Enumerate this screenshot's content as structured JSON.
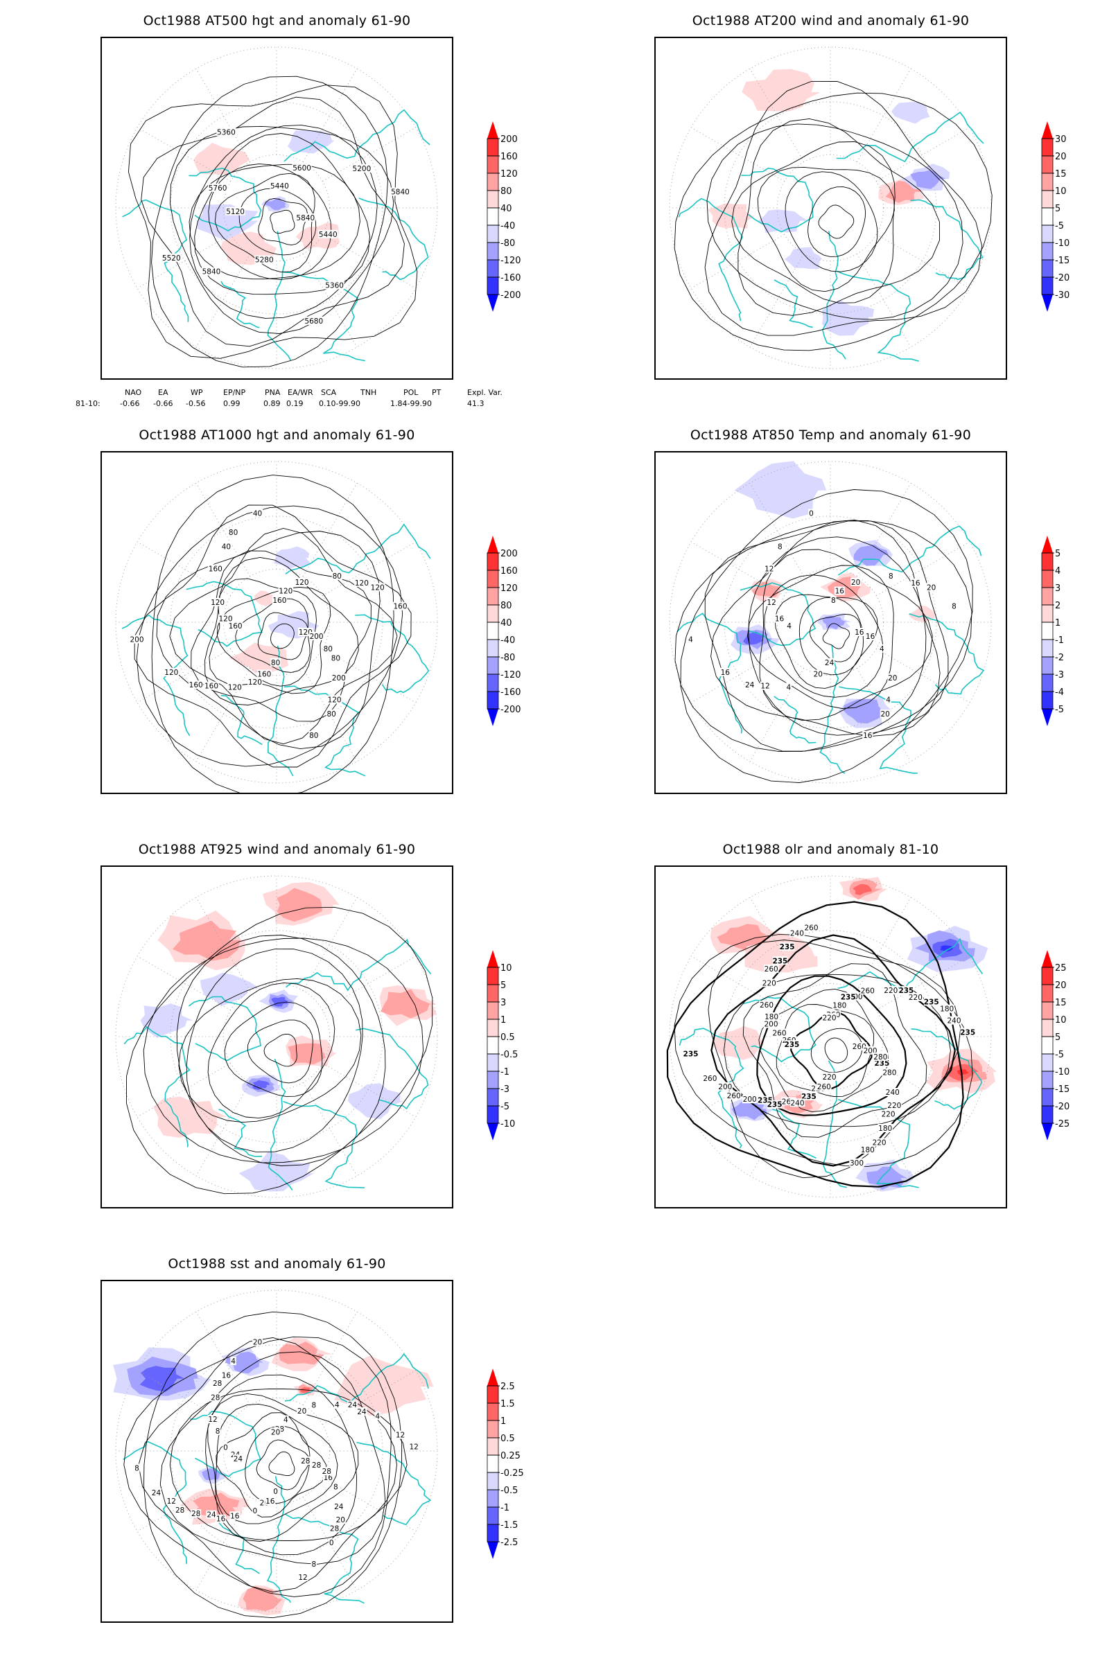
{
  "chart_data": [
    {
      "type": "heatmap",
      "id": "p500",
      "title": "Oct1988 AT500 hgt and anomaly 61-90",
      "projection": "north polar stereographic",
      "contour_labels": [
        "5840",
        "5840",
        "5440",
        "5360",
        "5120",
        "5200",
        "5280",
        "5360",
        "5440",
        "5520",
        "5600",
        "5680",
        "5760",
        "5840"
      ],
      "colorbar": {
        "levels": [
          "200",
          "160",
          "120",
          "80",
          "40",
          "-40",
          "-80",
          "-120",
          "-160",
          "-200"
        ],
        "colors": [
          "#ff0000",
          "#ff3333",
          "#ff6666",
          "#ffa3a3",
          "#ffd9d9",
          "#ffffff",
          "#d9d9ff",
          "#a3a3ff",
          "#6666ff",
          "#3333ff",
          "#0000ff"
        ]
      },
      "anomaly_pattern": [
        {
          "sign": "neg",
          "strength": 2,
          "cx": 0.0,
          "cy": -0.02,
          "r": 0.06
        },
        {
          "sign": "neg",
          "strength": 1,
          "cx": -0.32,
          "cy": 0.08,
          "r": 0.14
        },
        {
          "sign": "neg",
          "strength": 1,
          "cx": 0.2,
          "cy": -0.42,
          "r": 0.1
        },
        {
          "sign": "pos",
          "strength": 1,
          "cx": -0.36,
          "cy": -0.3,
          "r": 0.12
        },
        {
          "sign": "pos",
          "strength": 1,
          "cx": -0.2,
          "cy": 0.25,
          "r": 0.12
        },
        {
          "sign": "pos",
          "strength": 1,
          "cx": 0.28,
          "cy": 0.18,
          "r": 0.1
        }
      ]
    },
    {
      "type": "heatmap",
      "id": "p200",
      "title": "Oct1988 AT200 wind and anomaly 61-90",
      "projection": "north polar stereographic",
      "contour_labels": [],
      "colorbar": {
        "levels": [
          "30",
          "20",
          "15",
          "10",
          "5",
          "-5",
          "-10",
          "-15",
          "-20",
          "-30"
        ],
        "colors": [
          "#ff0000",
          "#ff3333",
          "#ff6666",
          "#ffa3a3",
          "#ffd9d9",
          "#ffffff",
          "#d9d9ff",
          "#a3a3ff",
          "#6666ff",
          "#3333ff",
          "#0000ff"
        ]
      },
      "anomaly_pattern": [
        {
          "sign": "pos",
          "strength": 1,
          "cx": -0.3,
          "cy": -0.72,
          "r": 0.16
        },
        {
          "sign": "pos",
          "strength": 2,
          "cx": 0.45,
          "cy": -0.1,
          "r": 0.1
        },
        {
          "sign": "pos",
          "strength": 1,
          "cx": -0.62,
          "cy": 0.05,
          "r": 0.1
        },
        {
          "sign": "neg",
          "strength": 2,
          "cx": 0.6,
          "cy": -0.18,
          "r": 0.1
        },
        {
          "sign": "neg",
          "strength": 1,
          "cx": -0.3,
          "cy": 0.08,
          "r": 0.1
        },
        {
          "sign": "neg",
          "strength": 1,
          "cx": -0.15,
          "cy": 0.32,
          "r": 0.08
        },
        {
          "sign": "neg",
          "strength": 1,
          "cx": 0.1,
          "cy": 0.68,
          "r": 0.12
        },
        {
          "sign": "neg",
          "strength": 1,
          "cx": 0.5,
          "cy": -0.6,
          "r": 0.08
        }
      ]
    },
    {
      "type": "heatmap",
      "id": "p1000",
      "title": "Oct1988 AT1000 hgt and anomaly 61-90",
      "projection": "north polar stereographic",
      "contour_labels": [
        "120",
        "160",
        "160",
        "120",
        "160",
        "120",
        "160",
        "40",
        "80",
        "120",
        "120",
        "80",
        "120",
        "160",
        "120",
        "40",
        "200",
        "200",
        "80",
        "80",
        "160",
        "200",
        "160",
        "120",
        "80",
        "120",
        "120",
        "120",
        "80",
        "80"
      ],
      "colorbar": {
        "levels": [
          "200",
          "160",
          "120",
          "80",
          "40",
          "-40",
          "-80",
          "-120",
          "-160",
          "-200"
        ],
        "colors": [
          "#ff0000",
          "#ff3333",
          "#ff6666",
          "#ffa3a3",
          "#ffd9d9",
          "#ffffff",
          "#d9d9ff",
          "#a3a3ff",
          "#6666ff",
          "#3333ff",
          "#0000ff"
        ]
      },
      "anomaly_pattern": [
        {
          "sign": "neg",
          "strength": 1,
          "cx": 0.1,
          "cy": 0.02,
          "r": 0.1
        },
        {
          "sign": "neg",
          "strength": 1,
          "cx": 0.1,
          "cy": -0.4,
          "r": 0.08
        },
        {
          "sign": "pos",
          "strength": 1,
          "cx": -0.1,
          "cy": 0.22,
          "r": 0.12
        },
        {
          "sign": "pos",
          "strength": 1,
          "cx": -0.08,
          "cy": -0.15,
          "r": 0.05
        }
      ]
    },
    {
      "type": "heatmap",
      "id": "p850",
      "title": "Oct1988 AT850 Temp and anomaly 61-90",
      "projection": "north polar stereographic",
      "contour_labels": [
        "16",
        "12",
        "8",
        "4",
        "4",
        "16",
        "20",
        "8",
        "4",
        "16",
        "20",
        "16",
        "12",
        "8",
        "4",
        "0",
        "20",
        "4",
        "8",
        "24",
        "12",
        "16",
        "24",
        "16",
        "20",
        "16",
        "20"
      ],
      "colorbar": {
        "levels": [
          "5",
          "4",
          "3",
          "2",
          "1",
          "-1",
          "-2",
          "-3",
          "-4",
          "-5"
        ],
        "colors": [
          "#ff0000",
          "#ff3333",
          "#ff6666",
          "#ffa3a3",
          "#ffd9d9",
          "#ffffff",
          "#d9d9ff",
          "#a3a3ff",
          "#6666ff",
          "#3333ff",
          "#0000ff"
        ]
      },
      "anomaly_pattern": [
        {
          "sign": "neg",
          "strength": 1,
          "cx": -0.3,
          "cy": -0.82,
          "r": 0.2
        },
        {
          "sign": "neg",
          "strength": 3,
          "cx": -0.48,
          "cy": 0.1,
          "r": 0.1
        },
        {
          "sign": "neg",
          "strength": 2,
          "cx": 0.02,
          "cy": 0.0,
          "r": 0.07
        },
        {
          "sign": "neg",
          "strength": 2,
          "cx": 0.25,
          "cy": -0.42,
          "r": 0.1
        },
        {
          "sign": "neg",
          "strength": 2,
          "cx": 0.2,
          "cy": 0.55,
          "r": 0.12
        },
        {
          "sign": "pos",
          "strength": 2,
          "cx": -0.4,
          "cy": -0.2,
          "r": 0.08
        },
        {
          "sign": "pos",
          "strength": 2,
          "cx": 0.1,
          "cy": -0.22,
          "r": 0.1
        },
        {
          "sign": "pos",
          "strength": 1,
          "cx": 0.58,
          "cy": -0.05,
          "r": 0.06
        }
      ]
    },
    {
      "type": "heatmap",
      "id": "p925",
      "title": "Oct1988 AT925 wind and anomaly 61-90",
      "projection": "north polar stereographic",
      "contour_labels": [],
      "colorbar": {
        "levels": [
          "10",
          "5",
          "3",
          "1",
          "0.5",
          "-0.5",
          "-1",
          "-3",
          "-5",
          "-10"
        ],
        "colors": [
          "#ff0000",
          "#ff3333",
          "#ff6666",
          "#ffa3a3",
          "#ffd9d9",
          "#ffffff",
          "#d9d9ff",
          "#a3a3ff",
          "#6666ff",
          "#3333ff",
          "#0000ff"
        ]
      },
      "anomaly_pattern": [
        {
          "sign": "pos",
          "strength": 2,
          "cx": -0.45,
          "cy": -0.6,
          "r": 0.2
        },
        {
          "sign": "pos",
          "strength": 2,
          "cx": 0.15,
          "cy": -0.82,
          "r": 0.16
        },
        {
          "sign": "pos",
          "strength": 2,
          "cx": 0.8,
          "cy": -0.2,
          "r": 0.14
        },
        {
          "sign": "pos",
          "strength": 2,
          "cx": 0.2,
          "cy": 0.1,
          "r": 0.12
        },
        {
          "sign": "pos",
          "strength": 1,
          "cx": -0.55,
          "cy": 0.5,
          "r": 0.15
        },
        {
          "sign": "neg",
          "strength": 3,
          "cx": 0.02,
          "cy": -0.22,
          "r": 0.08
        },
        {
          "sign": "neg",
          "strength": 3,
          "cx": -0.1,
          "cy": 0.3,
          "r": 0.08
        },
        {
          "sign": "neg",
          "strength": 1,
          "cx": -0.3,
          "cy": -0.3,
          "r": 0.12
        },
        {
          "sign": "neg",
          "strength": 1,
          "cx": -0.7,
          "cy": -0.1,
          "r": 0.12
        },
        {
          "sign": "neg",
          "strength": 1,
          "cx": 0.6,
          "cy": 0.4,
          "r": 0.12
        },
        {
          "sign": "neg",
          "strength": 1,
          "cx": 0.0,
          "cy": 0.85,
          "r": 0.14
        }
      ]
    },
    {
      "type": "heatmap",
      "id": "polr",
      "title": "Oct1988 olr and anomaly 81-10",
      "projection": "north polar stereographic",
      "contour_labels": [
        "260",
        "235",
        "260",
        "220",
        "260",
        "220",
        "220",
        "235",
        "235",
        "200",
        "200",
        "180",
        "180",
        "240",
        "260",
        "260",
        "240",
        "235",
        "220",
        "220",
        "220",
        "200",
        "200",
        "180",
        "180",
        "260",
        "235",
        "235",
        "235",
        "280",
        "260",
        "260",
        "300",
        "260",
        "235",
        "235",
        "220",
        "220",
        "235",
        "235",
        "260",
        "260",
        "280",
        "260",
        "235",
        "220",
        "200",
        "180",
        "240",
        "240"
      ],
      "colorbar": {
        "levels": [
          "25",
          "20",
          "15",
          "10",
          "5",
          "-5",
          "-10",
          "-15",
          "-20",
          "-25"
        ],
        "colors": [
          "#ff0000",
          "#ff3333",
          "#ff6666",
          "#ffa3a3",
          "#ffd9d9",
          "#ffffff",
          "#d9d9ff",
          "#a3a3ff",
          "#6666ff",
          "#3333ff",
          "#0000ff"
        ]
      },
      "anomaly_pattern": [
        {
          "sign": "pos",
          "strength": 2,
          "cx": -0.55,
          "cy": -0.62,
          "r": 0.14
        },
        {
          "sign": "pos",
          "strength": 3,
          "cx": 0.2,
          "cy": -0.92,
          "r": 0.1
        },
        {
          "sign": "neg",
          "strength": 4,
          "cx": 0.72,
          "cy": -0.55,
          "r": 0.16
        },
        {
          "sign": "pos",
          "strength": 4,
          "cx": 0.82,
          "cy": 0.22,
          "r": 0.15
        },
        {
          "sign": "pos",
          "strength": 1,
          "cx": -0.3,
          "cy": -0.5,
          "r": 0.16
        },
        {
          "sign": "pos",
          "strength": 1,
          "cx": -0.58,
          "cy": 0.05,
          "r": 0.12
        },
        {
          "sign": "neg",
          "strength": 2,
          "cx": -0.5,
          "cy": 0.45,
          "r": 0.1
        },
        {
          "sign": "neg",
          "strength": 2,
          "cx": 0.35,
          "cy": 0.88,
          "r": 0.12
        },
        {
          "sign": "pos",
          "strength": 2,
          "cx": -0.2,
          "cy": 0.42,
          "r": 0.1
        }
      ]
    },
    {
      "type": "heatmap",
      "id": "psst",
      "title": "Oct1988 sst and anomaly 61-90",
      "projection": "north polar stereographic",
      "contour_labels": [
        "28",
        "24",
        "28",
        "28",
        "24",
        "24",
        "20",
        "16",
        "16",
        "12",
        "20",
        "8",
        "8",
        "12",
        "16",
        "20",
        "24",
        "8",
        "4",
        "0",
        "28",
        "28",
        "28",
        "4",
        "0",
        "0",
        "4",
        "0",
        "4",
        "8",
        "24",
        "8",
        "12",
        "12",
        "12",
        "16",
        "20",
        "20",
        "24",
        "24",
        "16",
        "28",
        "28",
        "28"
      ],
      "colorbar": {
        "levels": [
          "2.5",
          "1.5",
          "1",
          "0.5",
          "0.25",
          "-0.25",
          "-0.5",
          "-1",
          "-1.5",
          "-2.5"
        ],
        "colors": [
          "#ff0000",
          "#ff3333",
          "#ff6666",
          "#ffa3a3",
          "#ffd9d9",
          "#ffffff",
          "#d9d9ff",
          "#a3a3ff",
          "#6666ff",
          "#3333ff",
          "#0000ff"
        ]
      },
      "anomaly_pattern": [
        {
          "sign": "neg",
          "strength": 3,
          "cx": -0.72,
          "cy": -0.45,
          "r": 0.2
        },
        {
          "sign": "neg",
          "strength": 2,
          "cx": -0.2,
          "cy": -0.55,
          "r": 0.1
        },
        {
          "sign": "pos",
          "strength": 2,
          "cx": 0.15,
          "cy": -0.6,
          "r": 0.12
        },
        {
          "sign": "pos",
          "strength": 3,
          "cx": 0.18,
          "cy": -0.38,
          "r": 0.05
        },
        {
          "sign": "pos",
          "strength": 1,
          "cx": 0.65,
          "cy": -0.4,
          "r": 0.22
        },
        {
          "sign": "pos",
          "strength": 2,
          "cx": -0.38,
          "cy": 0.35,
          "r": 0.14
        },
        {
          "sign": "neg",
          "strength": 2,
          "cx": -0.4,
          "cy": 0.15,
          "r": 0.06
        },
        {
          "sign": "pos",
          "strength": 2,
          "cx": -0.1,
          "cy": 0.92,
          "r": 0.12
        }
      ]
    },
    {
      "type": "table",
      "id": "teleconnection-indices",
      "columns": [
        "",
        "NAO",
        "EA",
        "WP",
        "EP/NP",
        "PNA",
        "EA/WR",
        "SCA",
        "TNH",
        "POL",
        "PT",
        "Expl. Var."
      ],
      "rows": [
        {
          "label": "81-10:",
          "values": [
            "-0.66",
            "-0.66",
            "-0.56",
            "0.99",
            "0.89",
            "0.19",
            "0.10",
            "-99.90",
            "1.84",
            "-99.90",
            "41.3"
          ]
        }
      ],
      "display_row": [
        "81-10:",
        "-0.66",
        "-0.66",
        "-0.56",
        "0.99",
        "0.89",
        "0.19",
        "0.10-99.90",
        "1.84-99.90",
        "41.3"
      ]
    }
  ],
  "style": {
    "coastline_color": "#19c3c3",
    "contour_color": "#000000",
    "grid_color": "#a0a0a0"
  }
}
